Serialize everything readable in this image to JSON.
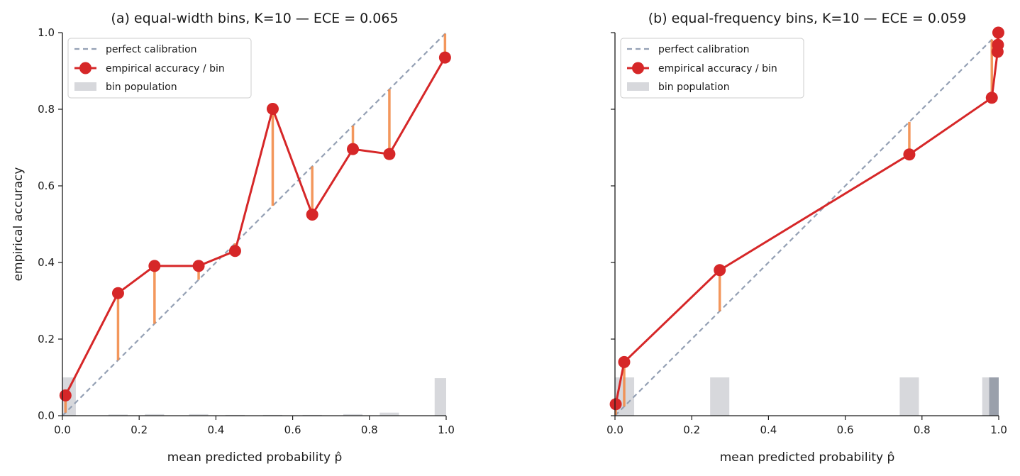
{
  "figure": {
    "ylabel": "empirical accuracy",
    "legend_entries": [
      "perfect calibration",
      "empirical accuracy / bin",
      "bin population"
    ]
  },
  "colors": {
    "diagonal": "#94a0b4",
    "line": "#d62728",
    "gap": "#f4a261",
    "gap_stroke": "#f28c4b",
    "bar": "#d7d8dc",
    "bar_dark": "#9aa0ab",
    "axis": "#1a1a1a"
  },
  "chart_data": [
    {
      "type": "line",
      "title": "(a) equal-width bins, K=10 — ECE = 0.065",
      "xlabel": "mean predicted probability p̂",
      "ylabel": "empirical accuracy",
      "xlim": [
        0,
        1
      ],
      "ylim": [
        0,
        1
      ],
      "xticks": [
        "0.0",
        "0.2",
        "0.4",
        "0.6",
        "0.8",
        "1.0"
      ],
      "yticks": [
        "0.0",
        "0.2",
        "0.4",
        "0.6",
        "0.8",
        "1.0"
      ],
      "legend_position": "upper-left",
      "grid": false,
      "series": [
        {
          "name": "empirical accuracy / bin",
          "x": [
            0.008,
            0.145,
            0.24,
            0.355,
            0.45,
            0.548,
            0.651,
            0.757,
            0.852,
            0.997
          ],
          "y": [
            0.053,
            0.32,
            0.391,
            0.391,
            0.43,
            0.801,
            0.525,
            0.696,
            0.683,
            0.935
          ]
        }
      ],
      "bins": [
        {
          "x0": 0.0,
          "x1": 0.035,
          "h": 0.1
        },
        {
          "x0": 0.12,
          "x1": 0.17,
          "h": 0.003
        },
        {
          "x0": 0.215,
          "x1": 0.265,
          "h": 0.004
        },
        {
          "x0": 0.33,
          "x1": 0.38,
          "h": 0.004
        },
        {
          "x0": 0.425,
          "x1": 0.475,
          "h": 0.002
        },
        {
          "x0": 0.523,
          "x1": 0.573,
          "h": 0.002
        },
        {
          "x0": 0.626,
          "x1": 0.676,
          "h": 0.002
        },
        {
          "x0": 0.732,
          "x1": 0.782,
          "h": 0.004
        },
        {
          "x0": 0.827,
          "x1": 0.877,
          "h": 0.008
        },
        {
          "x0": 0.97,
          "x1": 1.0,
          "h": 0.098
        }
      ]
    },
    {
      "type": "line",
      "title": "(b) equal-frequency bins, K=10 — ECE = 0.059",
      "xlabel": "mean predicted probability p̂",
      "ylabel": "",
      "xlim": [
        0,
        1
      ],
      "ylim": [
        0,
        1
      ],
      "xticks": [
        "0.0",
        "0.2",
        "0.4",
        "0.6",
        "0.8",
        "1.0"
      ],
      "yticks": [
        "0.0",
        "0.2",
        "0.4",
        "0.6",
        "0.8",
        "1.0"
      ],
      "legend_position": "upper-left",
      "grid": false,
      "series": [
        {
          "name": "empirical accuracy / bin",
          "x": [
            0.002,
            0.024,
            0.273,
            0.767,
            0.982,
            0.997,
            0.998,
            0.999
          ],
          "y": [
            0.03,
            0.14,
            0.38,
            0.682,
            0.83,
            0.95,
            0.968,
            1.0
          ]
        }
      ],
      "bins": [
        {
          "x0": 0.0,
          "x1": 0.05,
          "h": 0.1
        },
        {
          "x0": 0.248,
          "x1": 0.298,
          "h": 0.1
        },
        {
          "x0": 0.742,
          "x1": 0.792,
          "h": 0.1
        },
        {
          "x0": 0.957,
          "x1": 0.975,
          "h": 0.1
        },
        {
          "x0": 0.975,
          "x1": 1.0,
          "h": 0.1,
          "dark": true
        }
      ]
    }
  ]
}
